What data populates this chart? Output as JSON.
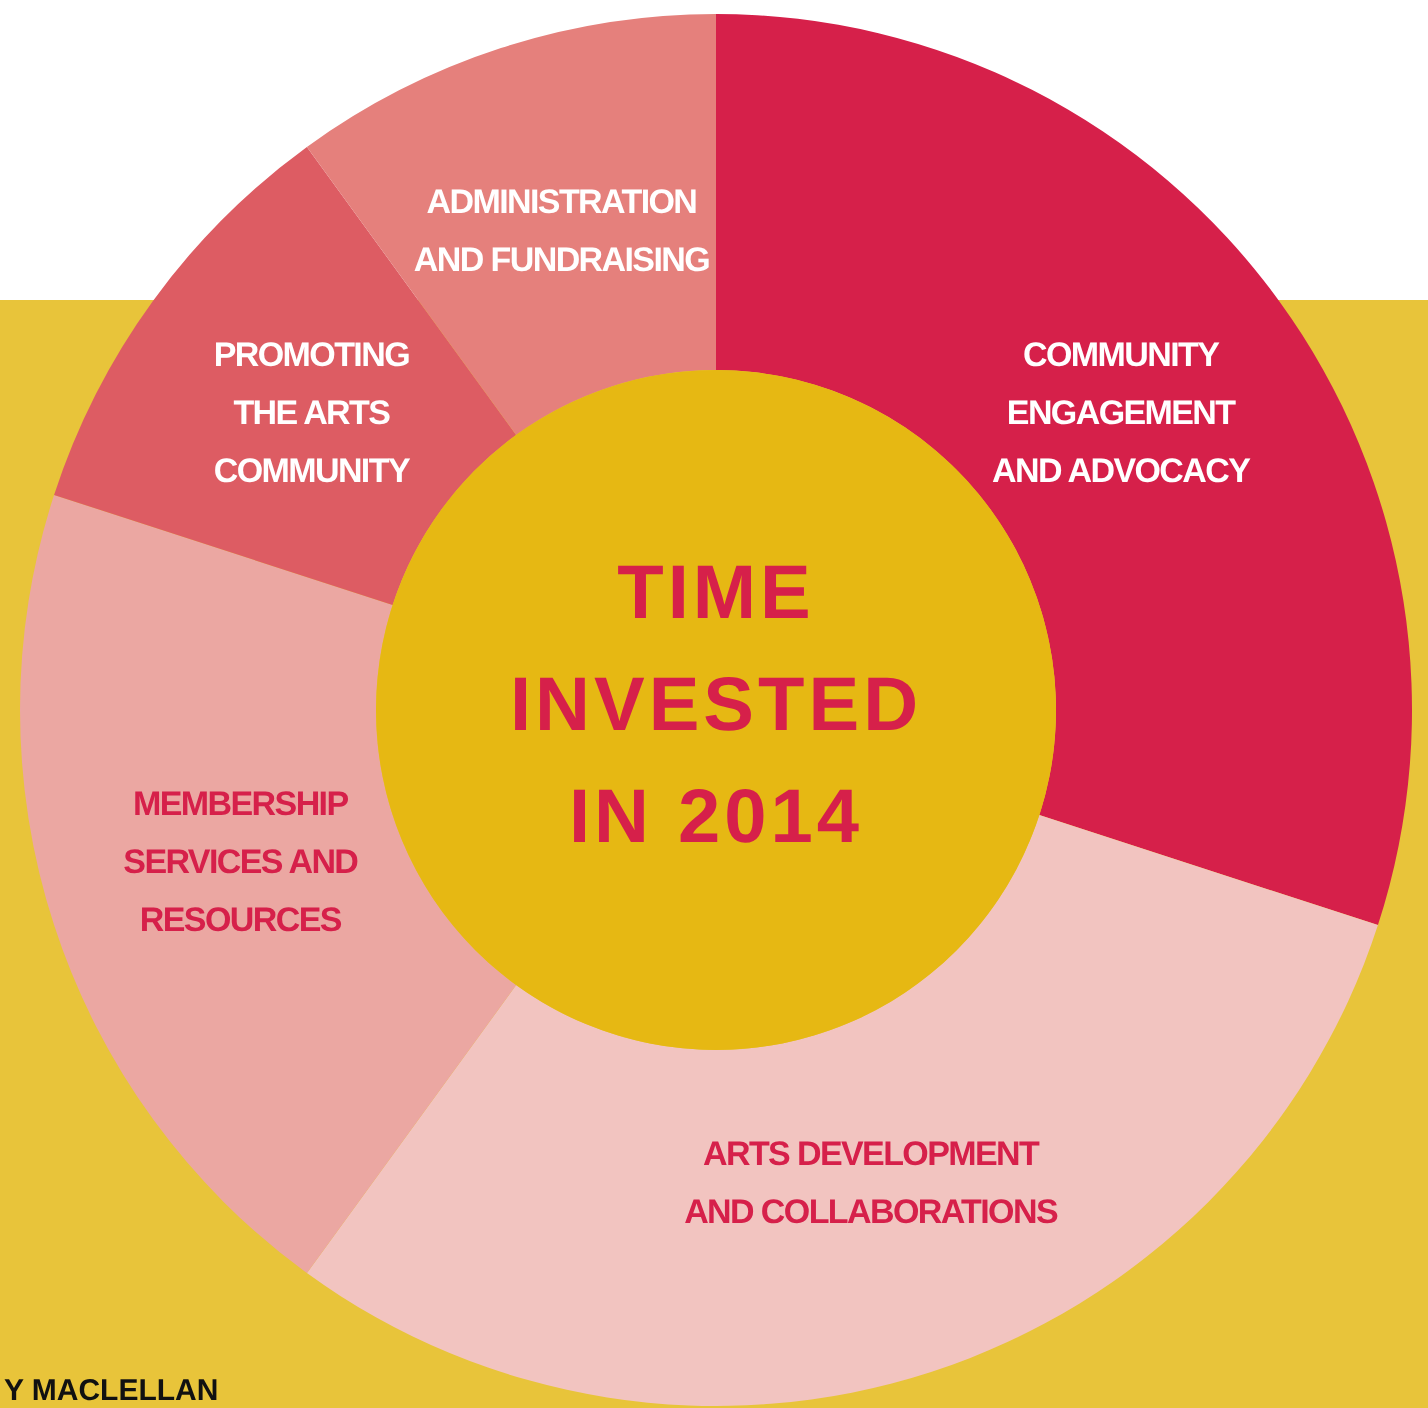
{
  "chart_data": {
    "type": "donut",
    "title": "TIME INVESTED IN 2014",
    "categories": [
      "COMMUNITY\nENGAGEMENT\nAND ADVOCACY",
      "ARTS DEVELOPMENT\nAND COLLABORATIONS",
      "MEMBERSHIP\nSERVICES AND\nRESOURCES",
      "PROMOTING\nTHE ARTS\nCOMMUNITY",
      "ADMINISTRATION\nAND FUNDRAISING"
    ],
    "values": [
      30,
      30,
      20,
      10,
      10
    ],
    "colors": [
      "#d6204a",
      "#f2c4c0",
      "#eba7a2",
      "#dd5c63",
      "#e5807c"
    ],
    "annotations": [
      "Y MACLELLAN"
    ]
  }
}
